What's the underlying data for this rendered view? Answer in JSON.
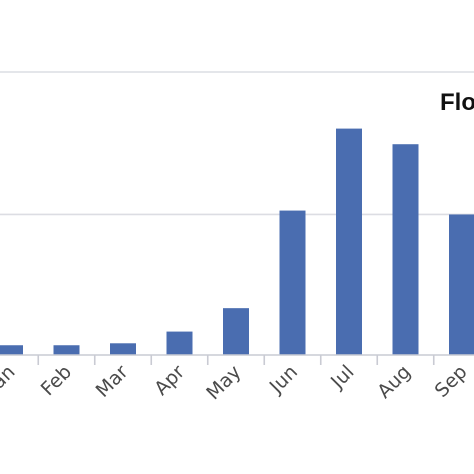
{
  "chart_data": {
    "type": "bar",
    "categories": [
      "Jan",
      "Feb",
      "Mar",
      "Apr",
      "May",
      "Jun",
      "Jul",
      "Aug",
      "Sep"
    ],
    "category_labels_shown": [
      "an",
      "Feb",
      "Mar",
      "Apr",
      "May",
      "Jun",
      "Jul",
      "Aug",
      "Sep"
    ],
    "values": [
      5,
      5,
      6,
      12,
      24,
      74,
      116,
      108,
      72
    ],
    "ylim": [
      0,
      145
    ],
    "gridlines": [
      72,
      145
    ],
    "grid": true,
    "legend_text": "Flo",
    "legend_position": "top-right",
    "bar_color": "#4a6db0"
  }
}
